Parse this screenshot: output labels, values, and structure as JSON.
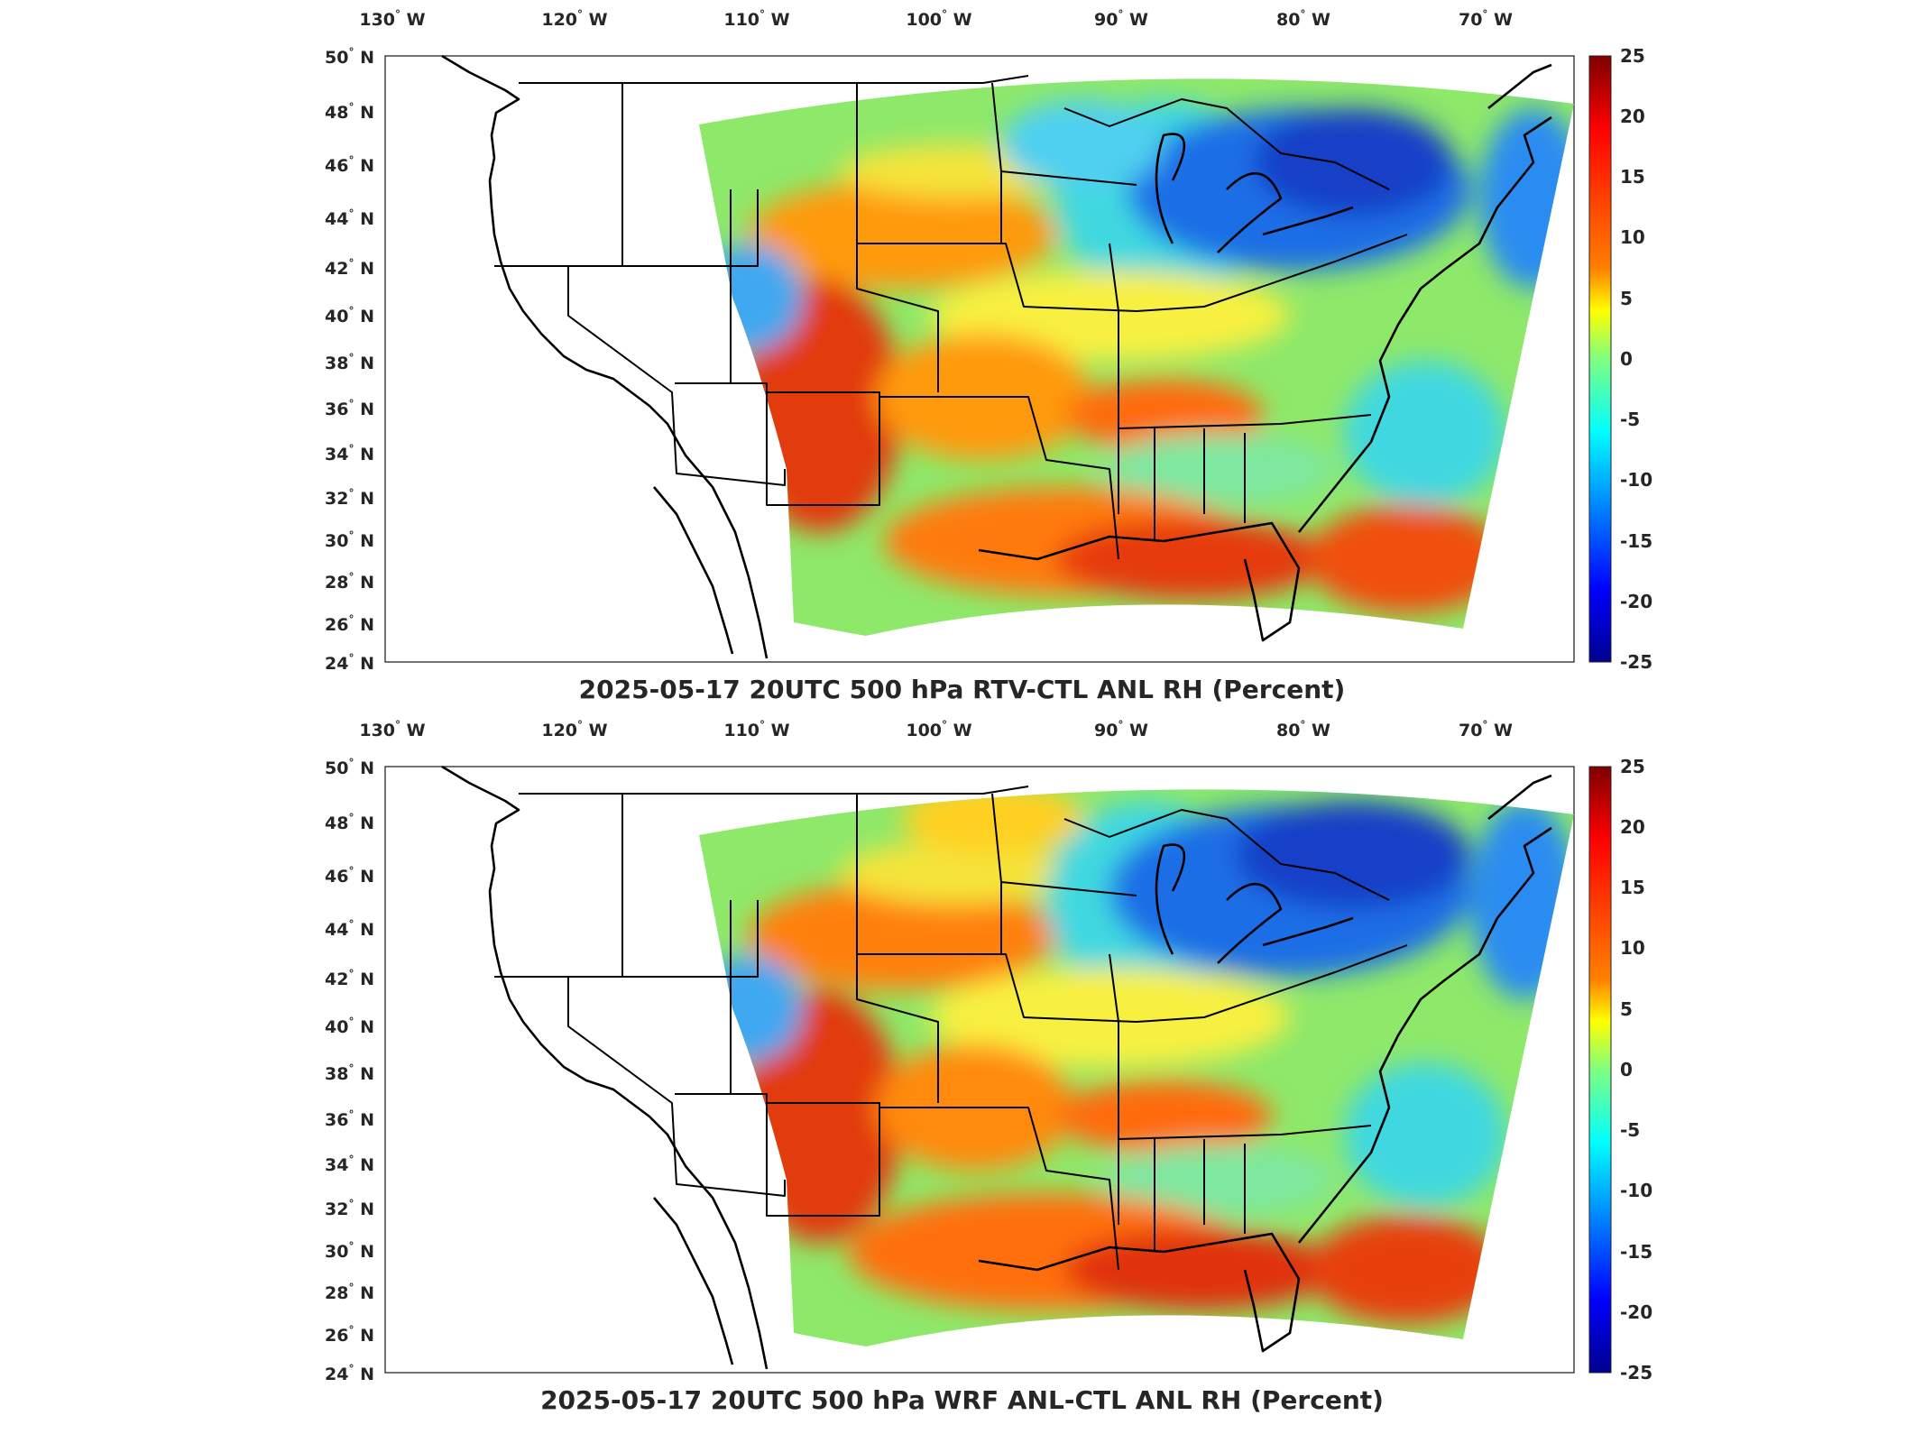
{
  "panels": [
    {
      "title": "2025-05-17 20UTC 500 hPa RTV-CTL ANL RH (Percent)",
      "lon_labels": [
        "130",
        "120",
        "110",
        "100",
        "90",
        "80",
        "70"
      ],
      "lon_suffix": "W",
      "lat_labels": [
        "50",
        "48",
        "46",
        "44",
        "42",
        "40",
        "38",
        "36",
        "34",
        "32",
        "30",
        "28",
        "26",
        "24"
      ],
      "lat_suffix": "N"
    },
    {
      "title": "2025-05-17 20UTC 500 hPa WRF ANL-CTL ANL RH (Percent)",
      "lon_labels": [
        "130",
        "120",
        "110",
        "100",
        "90",
        "80",
        "70"
      ],
      "lon_suffix": "W",
      "lat_labels": [
        "50",
        "48",
        "46",
        "44",
        "42",
        "40",
        "38",
        "36",
        "34",
        "32",
        "30",
        "28",
        "26",
        "24"
      ],
      "lat_suffix": "N"
    }
  ],
  "colorbar": {
    "labels": [
      "25",
      "20",
      "15",
      "10",
      "5",
      "0",
      "-5",
      "-10",
      "-15",
      "-20",
      "-25"
    ],
    "colormap": [
      "#7f0000",
      "#ff0000",
      "#ff7f00",
      "#ffff00",
      "#7fff7f",
      "#00ffff",
      "#007fff",
      "#0000ff",
      "#00008f"
    ]
  },
  "map": {
    "lon_range": [
      -131.5,
      -65
    ],
    "lat_range": [
      24,
      50
    ],
    "field_colors": {
      "moist": "#d62a00",
      "warm": "#ff8c00",
      "neutral": "#b8f04a",
      "cool": "#3fd8e0",
      "dry": "#1e5adf"
    }
  }
}
